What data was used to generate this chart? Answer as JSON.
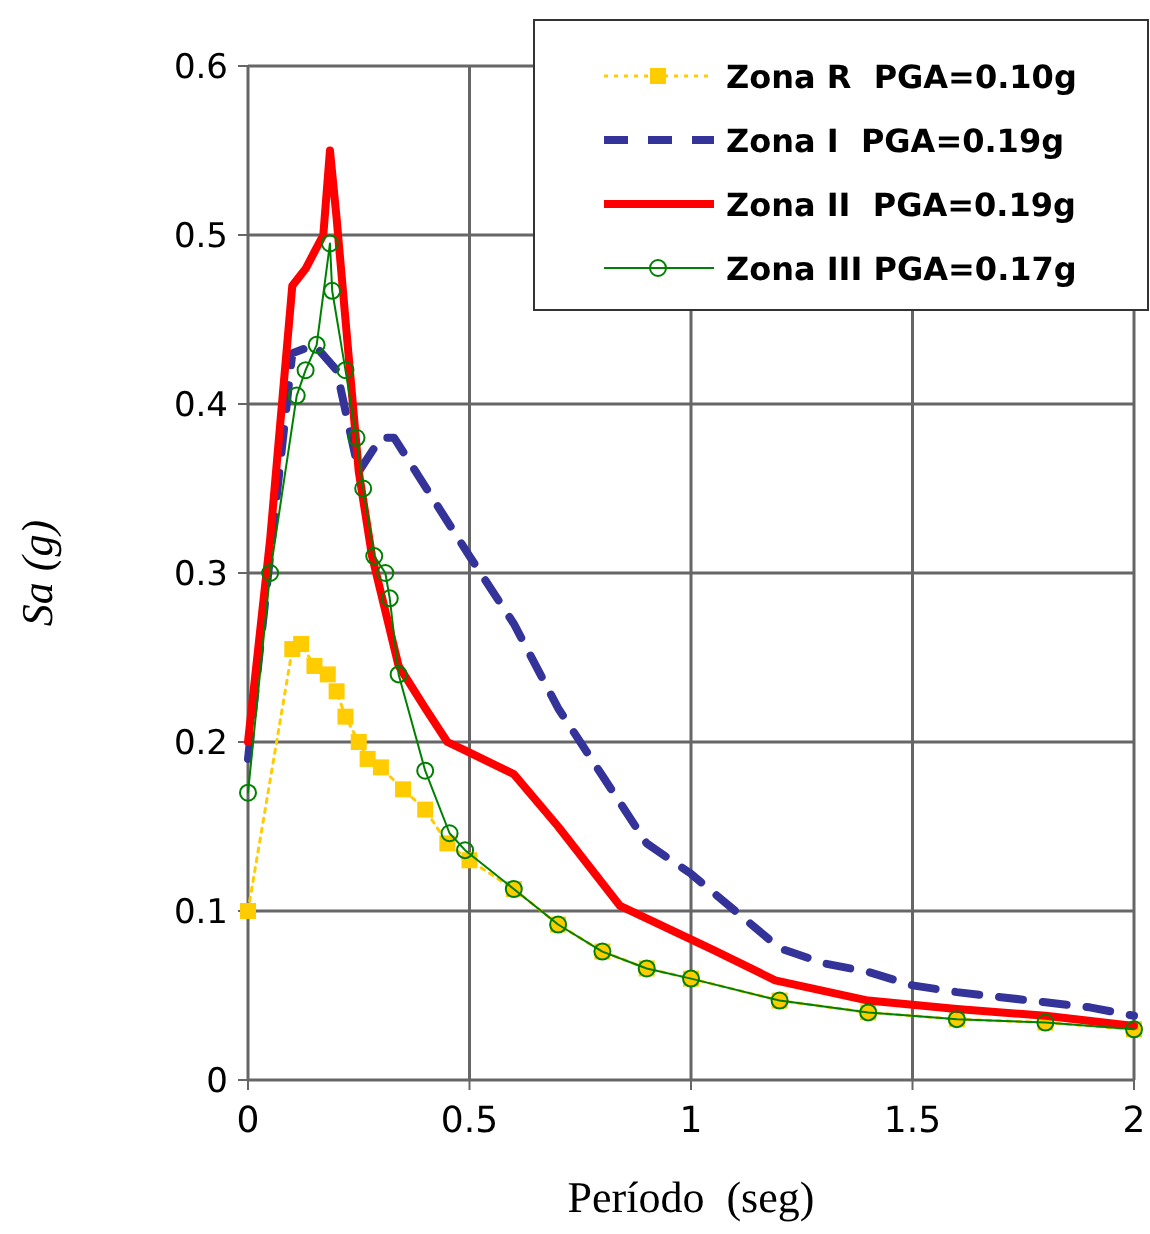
{
  "chart_data": {
    "type": "line",
    "xlabel": "Período  (seg)",
    "ylabel": "Sa (g)",
    "xlim": [
      0,
      2
    ],
    "xticks": [
      0,
      0.5,
      1,
      1.5,
      2
    ],
    "ylim": [
      0,
      0.6
    ],
    "yticks": [
      0,
      0.1,
      0.2,
      0.3,
      0.4,
      0.5,
      0.6
    ],
    "grid": true,
    "legend": "top right",
    "series": [
      {
        "name": "Zona R  PGA=0.10g",
        "color": "#ffcc00",
        "marker": "square",
        "line_style": "dotted",
        "x": [
          0,
          0.1,
          0.12,
          0.15,
          0.18,
          0.2,
          0.22,
          0.25,
          0.27,
          0.3,
          0.35,
          0.4,
          0.45,
          0.5,
          0.6,
          0.7,
          0.8,
          0.9,
          1,
          1.2,
          1.4,
          1.6,
          1.8,
          2
        ],
        "values": [
          0.1,
          0.255,
          0.258,
          0.245,
          0.24,
          0.23,
          0.215,
          0.2,
          0.19,
          0.185,
          0.172,
          0.16,
          0.14,
          0.13,
          0.113,
          0.092,
          0.076,
          0.066,
          0.06,
          0.047,
          0.04,
          0.036,
          0.034,
          0.03
        ]
      },
      {
        "name": "Zona I  PGA=0.19g",
        "color": "#333399",
        "marker": "none",
        "line_style": "dashed",
        "x": [
          0,
          0.1,
          0.15,
          0.2,
          0.25,
          0.3,
          0.33,
          0.5,
          0.6,
          0.7,
          0.8,
          0.9,
          1,
          1.2,
          1.3,
          1.4,
          1.5,
          1.6,
          1.7,
          1.8,
          1.9,
          2
        ],
        "values": [
          0.19,
          0.43,
          0.435,
          0.42,
          0.36,
          0.38,
          0.38,
          0.31,
          0.27,
          0.22,
          0.18,
          0.14,
          0.122,
          0.078,
          0.069,
          0.064,
          0.056,
          0.052,
          0.049,
          0.046,
          0.043,
          0.038
        ]
      },
      {
        "name": "Zona II  PGA=0.19g",
        "color": "#ff0000",
        "marker": "none",
        "line_style": "solid",
        "x": [
          0,
          0.05,
          0.1,
          0.13,
          0.15,
          0.17,
          0.185,
          0.2,
          0.22,
          0.25,
          0.28,
          0.34,
          0.4,
          0.45,
          0.49,
          0.6,
          0.7,
          0.84,
          1.05,
          1.19,
          1.4,
          1.6,
          1.8,
          2
        ],
        "values": [
          0.2,
          0.32,
          0.47,
          0.48,
          0.49,
          0.5,
          0.55,
          0.51,
          0.45,
          0.36,
          0.31,
          0.245,
          0.22,
          0.2,
          0.195,
          0.181,
          0.15,
          0.103,
          0.077,
          0.059,
          0.047,
          0.042,
          0.038,
          0.032
        ]
      },
      {
        "name": "Zona III PGA=0.17g",
        "color": "#008000",
        "marker": "circle",
        "line_style": "solid",
        "x": [
          0,
          0.05,
          0.11,
          0.13,
          0.155,
          0.185,
          0.19,
          0.22,
          0.245,
          0.26,
          0.285,
          0.31,
          0.32,
          0.34,
          0.4,
          0.455,
          0.49,
          0.6,
          0.7,
          0.8,
          0.9,
          1,
          1.2,
          1.4,
          1.6,
          1.8,
          2
        ],
        "values": [
          0.17,
          0.3,
          0.405,
          0.42,
          0.435,
          0.495,
          0.467,
          0.42,
          0.38,
          0.35,
          0.31,
          0.3,
          0.285,
          0.24,
          0.183,
          0.146,
          0.136,
          0.113,
          0.092,
          0.076,
          0.066,
          0.06,
          0.047,
          0.04,
          0.036,
          0.034,
          0.03
        ]
      }
    ]
  }
}
